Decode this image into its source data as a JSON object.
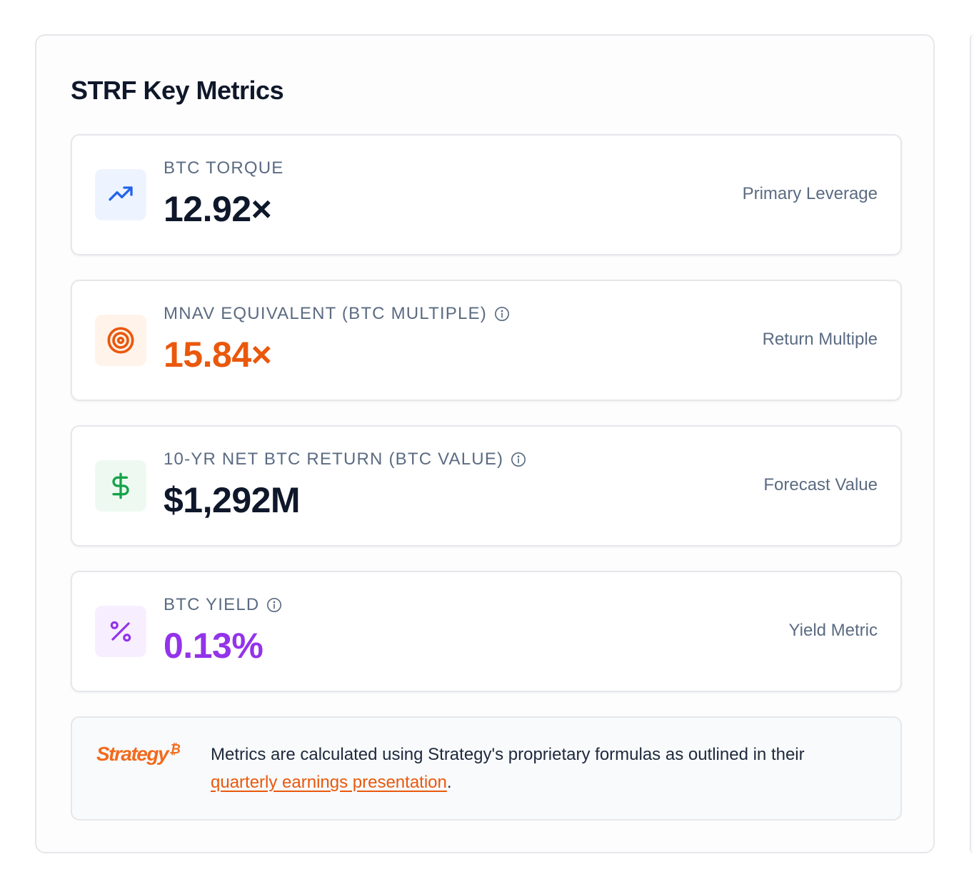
{
  "panel": {
    "title": "STRF Key Metrics"
  },
  "metrics": [
    {
      "label": "BTC TORQUE",
      "value": "12.92×",
      "tag": "Primary Leverage",
      "icon": "trending-up-icon",
      "value_color": "#0f172a",
      "icon_color": "#2563eb",
      "icon_bg": "#eef4ff",
      "has_info": false
    },
    {
      "label": "MNAV EQUIVALENT (BTC MULTIPLE)",
      "value": "15.84×",
      "tag": "Return Multiple",
      "icon": "target-icon",
      "value_color": "#ea580c",
      "icon_color": "#ea580c",
      "icon_bg": "#fff3ea",
      "has_info": true
    },
    {
      "label": "10-YR NET BTC RETURN (BTC VALUE)",
      "value": "$1,292M",
      "tag": "Forecast Value",
      "icon": "dollar-icon",
      "value_color": "#0f172a",
      "icon_color": "#16a34a",
      "icon_bg": "#eefaf1",
      "has_info": true
    },
    {
      "label": "BTC YIELD",
      "value": "0.13%",
      "tag": "Yield Metric",
      "icon": "percent-icon",
      "value_color": "#9333ea",
      "icon_color": "#9333ea",
      "icon_bg": "#f7efff",
      "has_info": true
    }
  ],
  "note": {
    "brand": "Strategy",
    "brand_mark": "₿",
    "text_before": "Metrics are calculated using Strategy's proprietary formulas as outlined in their ",
    "link_text": "quarterly earnings presentation",
    "text_after": "."
  },
  "colors": {
    "accent_orange": "#ea580c",
    "label_gray": "#5b6b82",
    "border": "#e5e7eb"
  }
}
